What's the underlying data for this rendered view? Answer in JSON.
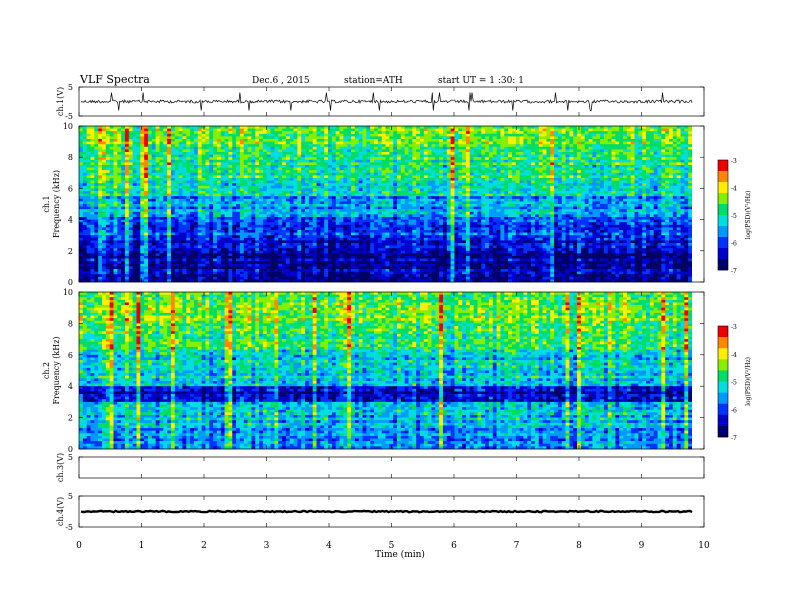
{
  "header": {
    "title": "VLF Spectra",
    "date": "Dec.6 , 2015",
    "station": "station=ATH",
    "start": "start UT = 1 :30: 1"
  },
  "colors": {
    "line": "#000000",
    "colormap": [
      "#000066",
      "#0000cc",
      "#0033ff",
      "#0099ff",
      "#00dddd",
      "#00dd66",
      "#88ee00",
      "#ffee00",
      "#ff8800",
      "#ee0000",
      "#ffffff"
    ]
  },
  "chart_data": [
    {
      "type": "line",
      "id": "ch1-waveform",
      "ylabel": "ch.1(V)",
      "ylim": [
        -5,
        5
      ],
      "yticks": [
        "5",
        "-5"
      ],
      "xlim": [
        0,
        10
      ],
      "baseline": 0.0,
      "note_values": "noisy waveform around 0 V with spikes"
    },
    {
      "type": "heatmap",
      "id": "ch1-spectrogram",
      "ylabel": "ch.1\nFrequency (kHz)",
      "ylim": [
        0,
        10
      ],
      "yticks": [
        "0",
        "2",
        "4",
        "6",
        "8",
        "10"
      ],
      "xlim": [
        0,
        10
      ],
      "colorbar": {
        "label": "log(PSD)(V²/Hz)",
        "range": [
          -7,
          -3
        ],
        "ticks": [
          "-3",
          "-4",
          "-5",
          "-6",
          "-7"
        ]
      },
      "bands": [
        {
          "f0": 0.0,
          "f1": 1.8,
          "level": -6.6
        },
        {
          "f0": 1.8,
          "f1": 3.0,
          "level": -6.3
        },
        {
          "f0": 3.0,
          "f1": 4.2,
          "level": -6.0
        },
        {
          "f0": 4.2,
          "f1": 5.5,
          "level": -5.5
        },
        {
          "f0": 5.5,
          "f1": 6.5,
          "level": -5.0
        },
        {
          "f0": 6.5,
          "f1": 8.5,
          "level": -4.8
        },
        {
          "f0": 8.5,
          "f1": 10.0,
          "level": -4.6
        }
      ]
    },
    {
      "type": "heatmap",
      "id": "ch2-spectrogram",
      "ylabel": "ch.2\nFrequency (kHz)",
      "ylim": [
        0,
        10
      ],
      "yticks": [
        "0",
        "2",
        "4",
        "6",
        "8",
        "10"
      ],
      "xlim": [
        0,
        10
      ],
      "colorbar": {
        "label": "log(PSD)(V²/Hz)",
        "range": [
          -7,
          -3
        ],
        "ticks": [
          "-3",
          "-4",
          "-5",
          "-6",
          "-7"
        ]
      },
      "bands": [
        {
          "f0": 0.0,
          "f1": 1.5,
          "level": -5.6
        },
        {
          "f0": 1.5,
          "f1": 3.0,
          "level": -5.4
        },
        {
          "f0": 3.0,
          "f1": 4.0,
          "level": -6.5
        },
        {
          "f0": 4.0,
          "f1": 6.0,
          "level": -5.3
        },
        {
          "f0": 6.0,
          "f1": 8.0,
          "level": -4.9
        },
        {
          "f0": 8.0,
          "f1": 10.0,
          "level": -4.6
        }
      ]
    },
    {
      "type": "line",
      "id": "ch3-waveform",
      "ylabel": "ch.3(V)",
      "ylim": [
        -5,
        5
      ],
      "yticks": [
        "5"
      ],
      "xlim": [
        0,
        10
      ]
    },
    {
      "type": "line",
      "id": "ch4-waveform",
      "ylabel": "ch.4(V)",
      "ylim": [
        -5,
        5
      ],
      "yticks": [
        "5",
        "-5"
      ],
      "xlim": [
        0,
        10
      ],
      "baseline": 0.0
    }
  ],
  "xaxis": {
    "label": "Time (min)",
    "ticks": [
      "0",
      "1",
      "2",
      "3",
      "4",
      "5",
      "6",
      "7",
      "8",
      "9",
      "10"
    ]
  }
}
